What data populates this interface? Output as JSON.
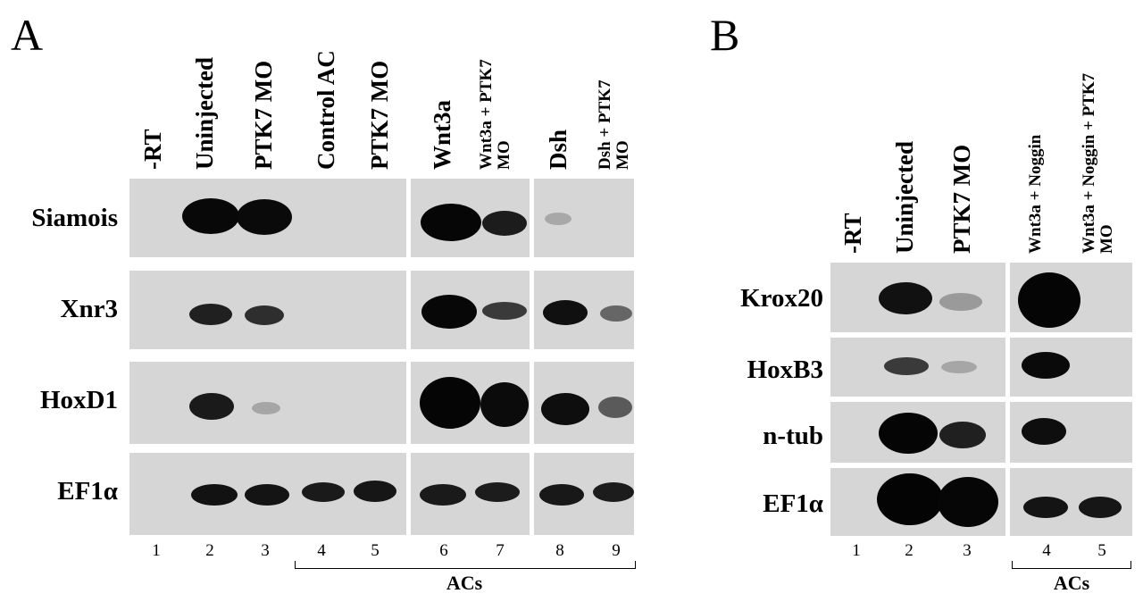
{
  "panel_a": {
    "letter": "A",
    "columns": [
      "-RT",
      "Uninjected",
      "PTK7 MO",
      "Control AC",
      "PTK7 MO",
      "Wnt3a",
      "Wnt3a + PTK7 MO",
      "Dsh",
      "Dsh + PTK7 MO"
    ],
    "rows": [
      "Siamois",
      "Xnr3",
      "HoxD1",
      "EF1α"
    ],
    "lanes": [
      "1",
      "2",
      "3",
      "4",
      "5",
      "6",
      "7",
      "8",
      "9"
    ],
    "bracket_label": "ACs"
  },
  "panel_b": {
    "letter": "B",
    "columns": [
      "-RT",
      "Uninjected",
      "PTK7 MO",
      "Wnt3a + Noggin",
      "Wnt3a + Noggin + PTK7 MO"
    ],
    "rows": [
      "Krox20",
      "HoxB3",
      "n-tub",
      "EF1α"
    ],
    "lanes": [
      "1",
      "2",
      "3",
      "4",
      "5"
    ],
    "bracket_label": "ACs"
  },
  "colors": {
    "blot_background": "#d6d6d6",
    "band": "#0a0a0a"
  }
}
